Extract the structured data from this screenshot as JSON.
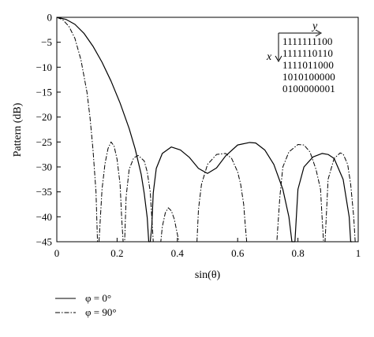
{
  "chart_data": {
    "type": "line",
    "xlabel": "sin(θ)",
    "ylabel": "Pattern (dB)",
    "xlim": [
      0,
      1
    ],
    "ylim": [
      -45,
      0
    ],
    "xticks": [
      0,
      0.2,
      0.4,
      0.6,
      0.8,
      1
    ],
    "xtick_labels": [
      "0",
      "0.2",
      "0.4",
      "0.6",
      "0.8",
      "1"
    ],
    "yticks": [
      0,
      -5,
      -10,
      -15,
      -20,
      -25,
      -30,
      -35,
      -40,
      -45
    ],
    "ytick_labels": [
      "0",
      "−5",
      "−10",
      "−15",
      "−20",
      "−25",
      "−30",
      "−35",
      "−40",
      "−45"
    ],
    "grid": false,
    "legend_position": "below the plot",
    "series": [
      {
        "name": "φ = 0°",
        "style": "solid",
        "color": "#000000",
        "x": [
          0,
          0.03,
          0.06,
          0.09,
          0.12,
          0.15,
          0.18,
          0.21,
          0.24,
          0.26,
          0.28,
          0.29,
          0.3,
          0.305,
          0.31,
          0.315,
          0.32,
          0.33,
          0.35,
          0.38,
          0.41,
          0.44,
          0.47,
          0.5,
          0.53,
          0.56,
          0.6,
          0.64,
          0.66,
          0.69,
          0.72,
          0.75,
          0.77,
          0.78,
          0.785,
          0.79,
          0.8,
          0.82,
          0.85,
          0.88,
          0.9,
          0.92,
          0.95,
          0.97,
          0.975,
          0.98
        ],
        "y": [
          0,
          -0.4,
          -1.4,
          -3.2,
          -5.8,
          -9.0,
          -12.8,
          -17.2,
          -22.3,
          -26.4,
          -31.5,
          -35.3,
          -40.2,
          -45,
          -45,
          -42.0,
          -35.2,
          -30.3,
          -27.3,
          -26.0,
          -26.6,
          -28.1,
          -30.3,
          -31.3,
          -30.2,
          -27.8,
          -25.6,
          -25.1,
          -25.2,
          -26.6,
          -29.5,
          -34.5,
          -40.0,
          -45,
          -45,
          -45,
          -34.5,
          -30.0,
          -28.0,
          -27.3,
          -27.5,
          -28.3,
          -32.5,
          -40.0,
          -45,
          -45
        ]
      },
      {
        "name": "φ = 90°",
        "style": "dash-dot",
        "color": "#000000",
        "x": [
          0,
          0.02,
          0.04,
          0.06,
          0.08,
          0.1,
          0.11,
          0.12,
          0.13,
          0.135,
          0.14,
          0.15,
          0.16,
          0.17,
          0.18,
          0.19,
          0.2,
          0.21,
          0.215,
          0.22,
          0.225,
          0.23,
          0.24,
          0.255,
          0.27,
          0.29,
          0.3,
          0.31,
          0.315,
          0.32,
          0.33,
          0.335,
          0.34,
          0.345,
          0.35,
          0.36,
          0.37,
          0.38,
          0.39,
          0.4,
          0.405,
          0.41,
          0.46,
          0.465,
          0.47,
          0.48,
          0.5,
          0.53,
          0.56,
          0.58,
          0.6,
          0.61,
          0.62,
          0.625,
          0.63,
          0.73,
          0.74,
          0.75,
          0.77,
          0.8,
          0.82,
          0.84,
          0.86,
          0.875,
          0.88,
          0.885,
          0.89,
          0.9,
          0.92,
          0.94,
          0.95,
          0.965,
          0.975,
          0.985,
          0.99
        ],
        "y": [
          0,
          -0.5,
          -1.8,
          -4.2,
          -8.5,
          -15.0,
          -20.0,
          -26.5,
          -35.0,
          -45,
          -45,
          -34.5,
          -29.3,
          -26.3,
          -25.0,
          -25.8,
          -28.5,
          -33.5,
          -40.0,
          -45,
          -45,
          -36.0,
          -30.5,
          -28.2,
          -27.7,
          -28.8,
          -31.0,
          -35.0,
          -40.0,
          -45,
          -45,
          -45,
          -45,
          -45,
          -42.0,
          -39.2,
          -38.2,
          -38.8,
          -40.5,
          -43.5,
          -45,
          -45,
          -45,
          -45,
          -38.5,
          -33.5,
          -29.5,
          -27.5,
          -27.3,
          -28.3,
          -31.0,
          -33.5,
          -37.5,
          -41.5,
          -45,
          -45,
          -36.0,
          -30.0,
          -27.0,
          -25.5,
          -25.6,
          -27.0,
          -30.5,
          -34.5,
          -40.0,
          -45,
          -45,
          -32.5,
          -28.3,
          -27.2,
          -27.4,
          -29.5,
          -33.5,
          -40.0,
          -45
        ]
      }
    ],
    "inset": {
      "x_axis_label": "x",
      "y_axis_label": "y",
      "rows": [
        "1111111100",
        "1111110110",
        "1111011000",
        "1010100000",
        "0100000001"
      ]
    },
    "legend": [
      {
        "label": "φ = 0°",
        "style": "solid"
      },
      {
        "label": "φ = 90°",
        "style": "dash-dot"
      }
    ]
  }
}
